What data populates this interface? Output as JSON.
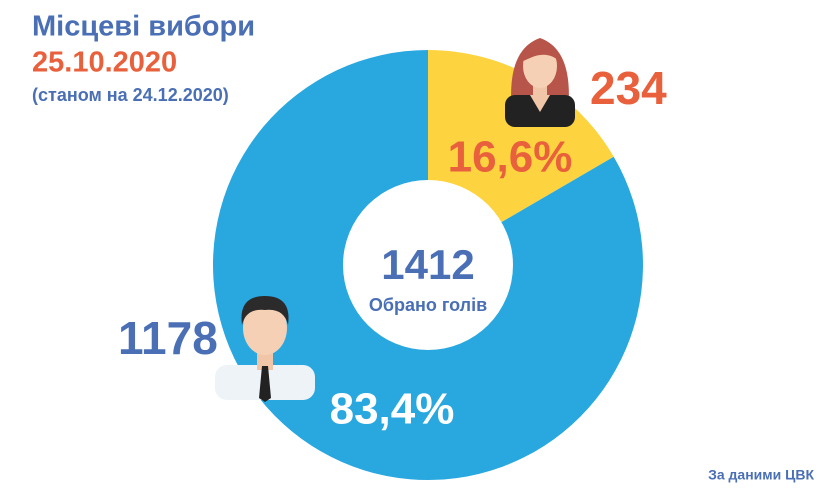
{
  "chart_data": {
    "type": "pie",
    "title": "Місцеві вибори",
    "subtitle": "25.10.2020",
    "note": "(станом на 24.12.2020)",
    "values": [
      16.6,
      83.4
    ],
    "value_labels": [
      "16,6%",
      "83,4%"
    ],
    "counts": [
      234,
      1178
    ],
    "colors": [
      "#fdd33f",
      "#29a8e0"
    ],
    "total": 1412,
    "center_label": "Обрано голів",
    "source": "За даними ЦВК"
  }
}
